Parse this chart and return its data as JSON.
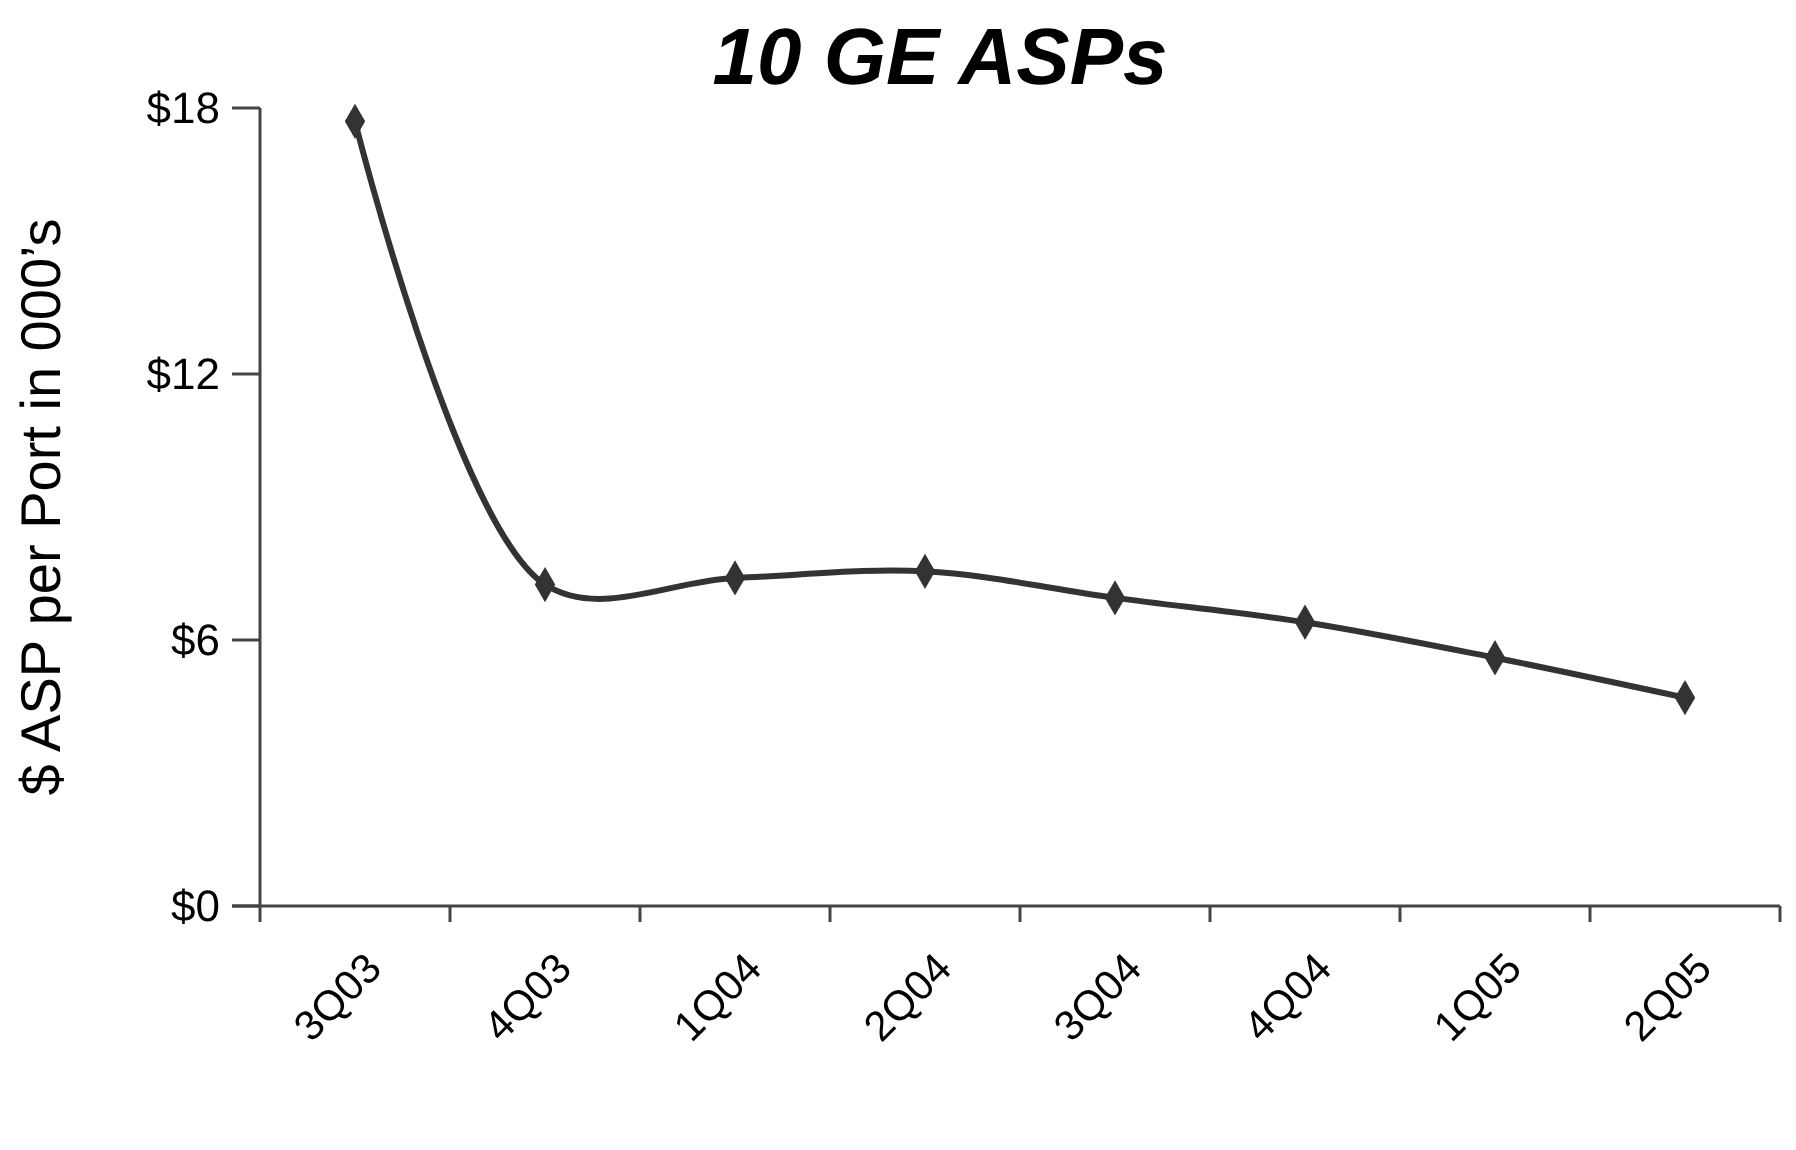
{
  "chart_data": {
    "type": "line",
    "title": "10 GE ASPs",
    "ylabel": "$ ASP per Port  in 000’s",
    "categories": [
      "3Q03",
      "4Q03",
      "1Q04",
      "2Q04",
      "3Q04",
      "4Q04",
      "1Q05",
      "2Q05"
    ],
    "series": [
      {
        "color": "#333333",
        "values": [
          17.7,
          7.25,
          7.4,
          7.55,
          6.95,
          6.4,
          5.6,
          4.7
        ]
      }
    ],
    "ylim": [
      0,
      18
    ],
    "yticks": [
      {
        "value": 0,
        "label": "$0"
      },
      {
        "value": 6,
        "label": "$6"
      },
      {
        "value": 12,
        "label": "$12"
      },
      {
        "value": 18,
        "label": "$18"
      }
    ],
    "marker": "diamond"
  }
}
